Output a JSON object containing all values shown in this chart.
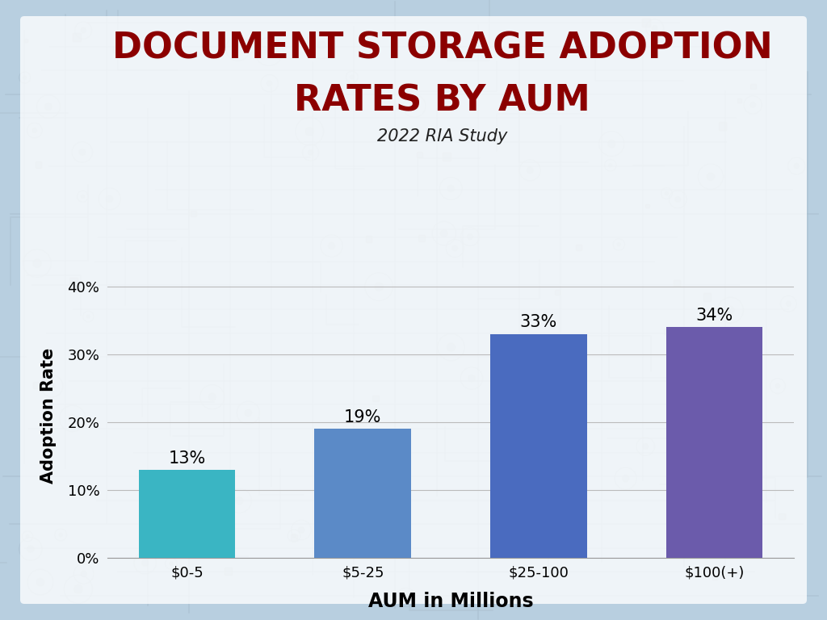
{
  "title_line1": "DOCUMENT STORAGE ADOPTION",
  "title_line2": "RATES BY AUM",
  "subtitle": "2022 RIA Study",
  "xlabel": "AUM in Millions",
  "ylabel": "Adoption Rate",
  "categories": [
    "$0-5",
    "$5-25",
    "$25-100",
    "$100(+)"
  ],
  "values": [
    13,
    19,
    33,
    34
  ],
  "bar_colors": [
    "#3ab5c3",
    "#5b8ac7",
    "#4a6bbf",
    "#6b5bab"
  ],
  "label_values": [
    "13%",
    "19%",
    "33%",
    "34%"
  ],
  "yticks": [
    0,
    10,
    20,
    30,
    40
  ],
  "ytick_labels": [
    "0%",
    "10%",
    "20%",
    "30%",
    "40%"
  ],
  "ylim": [
    0,
    42
  ],
  "title_color": "#8b0000",
  "title_fontsize": 32,
  "subtitle_fontsize": 15,
  "xlabel_fontsize": 17,
  "ylabel_fontsize": 15,
  "tick_fontsize": 13,
  "bar_label_fontsize": 15,
  "outer_bg": "#b8cfe0",
  "inner_bg": "#edf1f7",
  "plot_bg": "none",
  "grid_color": "#bbbbbb",
  "bar_width": 0.55,
  "circuit_color": "#c8d8e8",
  "circuit_line_color": "#aabfcf"
}
